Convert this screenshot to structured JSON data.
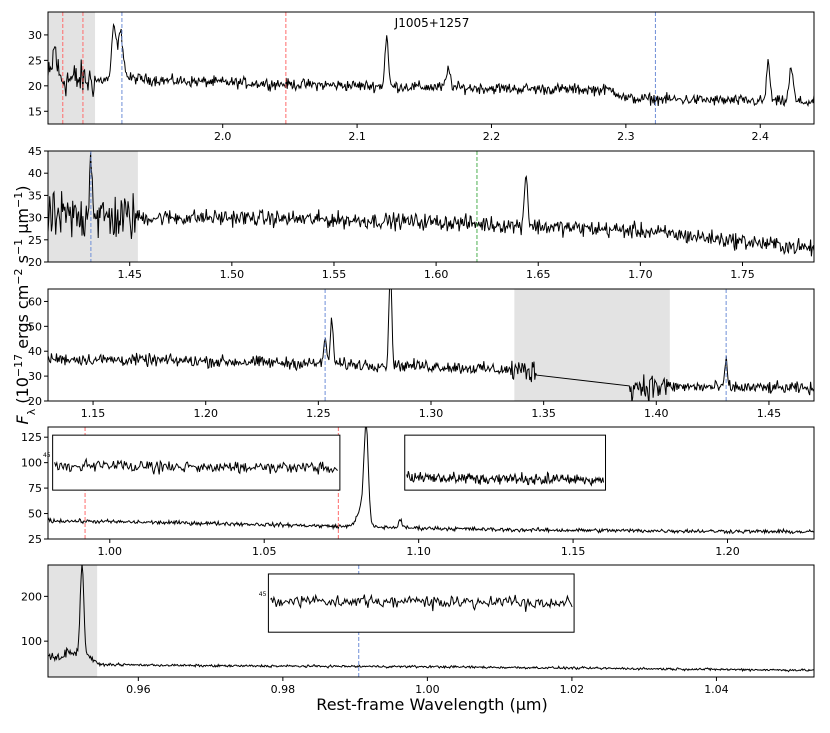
{
  "chart_data": {
    "type": "line",
    "object_name": "J1005+1257",
    "xlabel": "Rest-frame Wavelength (μm)",
    "ylabel_parts": [
      "F",
      "λ",
      " (10",
      "−17",
      " ergs cm",
      "−2",
      " s",
      "−1",
      " μm",
      "−1",
      ")"
    ],
    "colors": {
      "spectrum": "#000000",
      "shade": "#e3e3e3",
      "red_line": "#ff6b6b",
      "blue_line": "#6f8fd8",
      "green_line": "#4caf50",
      "frame": "#000000"
    },
    "panels": [
      {
        "id": "p1",
        "xlim": [
          1.87,
          2.44
        ],
        "ylim": [
          12.5,
          34.5
        ],
        "xticks": [
          2.0,
          2.1,
          2.2,
          2.3,
          2.4
        ],
        "xtick_labels": [
          "2.0",
          "2.1",
          "2.2",
          "2.3",
          "2.4"
        ],
        "yticks": [
          15,
          20,
          25,
          30
        ],
        "ytick_labels": [
          "15",
          "20",
          "25",
          "30"
        ],
        "shaded": [
          [
            1.87,
            1.905
          ]
        ],
        "vlines": [
          {
            "x": 1.881,
            "color": "red"
          },
          {
            "x": 1.896,
            "color": "red"
          },
          {
            "x": 1.925,
            "color": "blue"
          },
          {
            "x": 2.047,
            "color": "red"
          },
          {
            "x": 2.322,
            "color": "blue"
          }
        ],
        "continuum": [
          [
            1.87,
            21.5
          ],
          [
            1.905,
            21.0
          ],
          [
            1.93,
            21.5
          ],
          [
            1.96,
            21.0
          ],
          [
            2.05,
            20.3
          ],
          [
            2.2,
            19.5
          ],
          [
            2.29,
            19.2
          ],
          [
            2.3,
            17.5
          ],
          [
            2.44,
            16.8
          ]
        ],
        "noise": 0.9,
        "noisy": [
          [
            1.87,
            1.905,
            3.0
          ]
        ],
        "lines": [
          {
            "x": 1.875,
            "h": 6,
            "w": 0.0015
          },
          {
            "x": 1.919,
            "h": 10,
            "w": 0.0015
          },
          {
            "x": 1.924,
            "h": 9,
            "w": 0.002
          },
          {
            "x": 2.122,
            "h": 10,
            "w": 0.0012
          },
          {
            "x": 2.168,
            "h": 3.5,
            "w": 0.0015
          },
          {
            "x": 2.406,
            "h": 8,
            "w": 0.0012
          },
          {
            "x": 2.423,
            "h": 6.5,
            "w": 0.0015
          }
        ]
      },
      {
        "id": "p2",
        "xlim": [
          1.41,
          1.785
        ],
        "ylim": [
          20,
          45
        ],
        "xticks": [
          1.45,
          1.5,
          1.55,
          1.6,
          1.65,
          1.7,
          1.75
        ],
        "xtick_labels": [
          "1.45",
          "1.50",
          "1.55",
          "1.60",
          "1.65",
          "1.70",
          "1.75"
        ],
        "yticks": [
          20,
          25,
          30,
          35,
          40,
          45
        ],
        "ytick_labels": [
          "20",
          "25",
          "30",
          "35",
          "40",
          "45"
        ],
        "shaded": [
          [
            1.41,
            1.454
          ]
        ],
        "vlines": [
          {
            "x": 1.431,
            "color": "blue"
          },
          {
            "x": 1.62,
            "color": "green"
          }
        ],
        "continuum": [
          [
            1.41,
            30.0
          ],
          [
            1.5,
            30.0
          ],
          [
            1.6,
            29.0
          ],
          [
            1.7,
            27.0
          ],
          [
            1.785,
            23.0
          ]
        ],
        "noise": 1.5,
        "noisy": [
          [
            1.41,
            1.454,
            4.5
          ]
        ],
        "lines": [
          {
            "x": 1.431,
            "h": 14,
            "w": 0.0008
          },
          {
            "x": 1.644,
            "h": 12,
            "w": 0.0008
          }
        ]
      },
      {
        "id": "p3",
        "xlim": [
          1.13,
          1.47
        ],
        "ylim": [
          20,
          65
        ],
        "xticks": [
          1.15,
          1.2,
          1.25,
          1.3,
          1.35,
          1.4,
          1.45
        ],
        "xtick_labels": [
          "1.15",
          "1.20",
          "1.25",
          "1.30",
          "1.35",
          "1.40",
          "1.45"
        ],
        "yticks": [
          20,
          30,
          40,
          50,
          60
        ],
        "ytick_labels": [
          "20",
          "30",
          "40",
          "50",
          "60"
        ],
        "shaded": [
          [
            1.337,
            1.406
          ]
        ],
        "vlines": [
          {
            "x": 1.253,
            "color": "blue"
          },
          {
            "x": 1.431,
            "color": "blue"
          }
        ],
        "continuum": [
          [
            1.13,
            37.0
          ],
          [
            1.2,
            36.0
          ],
          [
            1.3,
            34.0
          ],
          [
            1.345,
            32.0
          ],
          [
            1.39,
            26.0
          ],
          [
            1.47,
            25.0
          ]
        ],
        "gap": [
          1.347,
          1.388
        ],
        "noise": 2.0,
        "noisy": [
          [
            1.335,
            1.347,
            4.0
          ],
          [
            1.388,
            1.405,
            5.0
          ]
        ],
        "lines": [
          {
            "x": 1.253,
            "h": 8,
            "w": 0.0008
          },
          {
            "x": 1.256,
            "h": 18,
            "w": 0.0006
          },
          {
            "x": 1.282,
            "h": 40,
            "w": 0.0006
          },
          {
            "x": 1.431,
            "h": 12,
            "w": 0.0005
          }
        ],
        "labels_below": [
          {
            "x": 1.341,
            "text": ""
          }
        ]
      },
      {
        "id": "p4",
        "xlim": [
          0.98,
          1.228
        ],
        "ylim": [
          25,
          135
        ],
        "xticks": [
          1.0,
          1.05,
          1.1,
          1.15,
          1.2
        ],
        "xtick_labels": [
          "1.00",
          "1.05",
          "1.10",
          "1.15",
          "1.20"
        ],
        "yticks": [
          25,
          50,
          75,
          100,
          125
        ],
        "ytick_labels": [
          "25",
          "50",
          "75",
          "100",
          "125"
        ],
        "shaded": [],
        "vlines": [
          {
            "x": 0.992,
            "color": "red"
          },
          {
            "x": 1.074,
            "color": "red"
          }
        ],
        "continuum": [
          [
            0.98,
            43.0
          ],
          [
            1.04,
            40.0
          ],
          [
            1.08,
            37.0
          ],
          [
            1.13,
            34.0
          ],
          [
            1.228,
            32.0
          ]
        ],
        "noise": 1.6,
        "noisy": [],
        "lines": [
          {
            "x": 1.083,
            "h": 90,
            "w": 0.0007
          },
          {
            "x": 1.0815,
            "h": 18,
            "w": 0.0015
          },
          {
            "x": 1.094,
            "h": 8,
            "w": 0.0005
          }
        ],
        "insets": [
          {
            "x0": 0.9815,
            "x1": 1.0745,
            "y0": 73,
            "y1": 127,
            "base": 97,
            "amp": 6,
            "tick": "45"
          },
          {
            "x0": 1.0955,
            "x1": 1.1605,
            "y0": 73,
            "y1": 127,
            "base": 85,
            "amp": 5,
            "tick": ""
          }
        ]
      },
      {
        "id": "p5",
        "xlim": [
          0.9475,
          1.0535
        ],
        "ylim": [
          20,
          270
        ],
        "xticks": [
          0.96,
          0.98,
          1.0,
          1.02,
          1.04
        ],
        "xtick_labels": [
          "0.96",
          "0.98",
          "1.00",
          "1.02",
          "1.04"
        ],
        "yticks": [
          100,
          200
        ],
        "ytick_labels": [
          "100",
          "200"
        ],
        "shaded": [
          [
            0.9475,
            0.9543
          ]
        ],
        "vlines": [
          {
            "x": 0.9905,
            "color": "blue"
          }
        ],
        "continuum": [
          [
            0.9475,
            65.0
          ],
          [
            0.953,
            70.0
          ],
          [
            0.9545,
            48.0
          ],
          [
            0.97,
            45.0
          ],
          [
            1.0,
            43.0
          ],
          [
            1.0535,
            35.0
          ]
        ],
        "noise": 2.2,
        "noisy": [
          [
            0.9475,
            0.954,
            8
          ]
        ],
        "lines": [
          {
            "x": 0.9522,
            "h": 200,
            "w": 0.00025
          },
          {
            "x": 0.9505,
            "h": 12,
            "w": 0.0004
          }
        ],
        "insets": [
          {
            "x0": 0.978,
            "x1": 1.0203,
            "y0": 120,
            "y1": 250,
            "base": 190,
            "amp": 12,
            "tick": "45"
          }
        ]
      }
    ]
  }
}
